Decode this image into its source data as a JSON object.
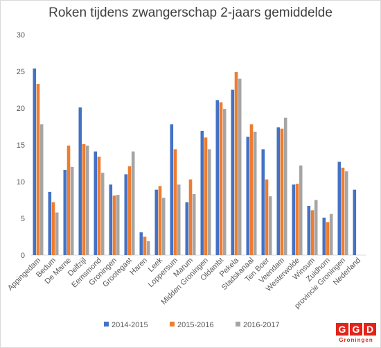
{
  "chart_data": {
    "type": "bar",
    "title": "Roken tijdens zwangerschap 2-jaars gemiddelde",
    "xlabel": "",
    "ylabel": "",
    "ylim": [
      0,
      30
    ],
    "yticks": [
      "0",
      "5",
      "10",
      "15",
      "20",
      "25",
      "30"
    ],
    "grid": false,
    "legend_position": "bottom",
    "categories": [
      "Appingedam",
      "Bedum",
      "De Marne",
      "Delfzijl",
      "Eemsmond",
      "Groningen",
      "Grootegast",
      "Haren",
      "Leek",
      "Loppersum",
      "Marum",
      "Midden Groningen",
      "Oldambt",
      "Pekela",
      "Stadskanaal",
      "Ten Boer",
      "Veendam",
      "Westerwolde",
      "Winsum",
      "Zuidhorn",
      "provincie Groningen",
      "Nederland"
    ],
    "series": [
      {
        "name": "2014-2015",
        "color": "#4472c4",
        "values": [
          25.4,
          8.6,
          11.6,
          20.1,
          14.1,
          9.6,
          11.0,
          3.1,
          8.9,
          17.8,
          7.2,
          16.9,
          21.1,
          22.5,
          16.1,
          14.4,
          17.4,
          9.6,
          6.7,
          5.1,
          12.7,
          8.9
        ]
      },
      {
        "name": "2015-2016",
        "color": "#ed7d31",
        "values": [
          23.3,
          7.2,
          14.9,
          15.1,
          13.4,
          8.1,
          12.1,
          2.5,
          9.4,
          14.4,
          10.3,
          16.0,
          20.8,
          24.9,
          17.8,
          10.3,
          17.2,
          9.7,
          6.1,
          4.5,
          11.9,
          null
        ]
      },
      {
        "name": "2016-2017",
        "color": "#a5a5a5",
        "values": [
          17.8,
          5.8,
          12.0,
          14.9,
          11.2,
          8.2,
          14.1,
          1.9,
          7.8,
          9.6,
          8.3,
          14.4,
          19.9,
          24.0,
          16.8,
          8.0,
          18.7,
          12.2,
          7.5,
          5.6,
          11.4,
          null
        ]
      }
    ]
  },
  "logo": {
    "letters": [
      "G",
      "G",
      "D"
    ],
    "subtitle": "Groningen"
  }
}
